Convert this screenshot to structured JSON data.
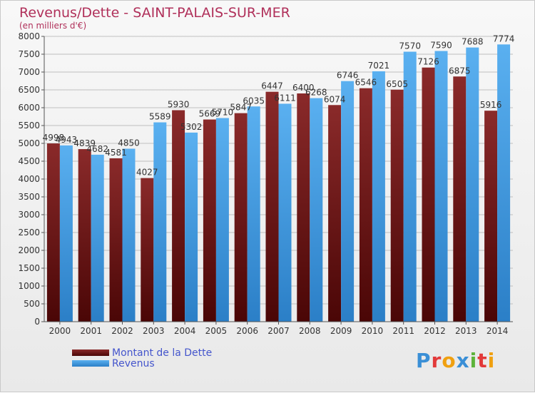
{
  "title": "Revenus/Dette - SAINT-PALAIS-SUR-MER",
  "subtitle": "(en milliers d'€)",
  "logo_text": "Proxiti",
  "colors": {
    "debt": "#7a1f1f",
    "revenue": "#4aa3e8",
    "title": "#b0305a",
    "legend_text": "#4455cc",
    "grid": "#bfbfbf"
  },
  "legend": {
    "debt_label": "Montant de la Dette",
    "revenue_label": "Revenus",
    "placement": "bottom-left"
  },
  "chart_data": {
    "type": "bar",
    "title": "Revenus/Dette - SAINT-PALAIS-SUR-MER",
    "subtitle": "(en milliers d'€)",
    "categories": [
      "2000",
      "2001",
      "2002",
      "2003",
      "2004",
      "2005",
      "2006",
      "2007",
      "2008",
      "2009",
      "2010",
      "2011",
      "2012",
      "2013",
      "2014"
    ],
    "series": [
      {
        "name": "Montant de la Dette",
        "values": [
          4998,
          4839,
          4581,
          4027,
          5930,
          5669,
          5847,
          6447,
          6400,
          6074,
          6546,
          6505,
          7126,
          6875,
          5916
        ],
        "labels": [
          "4998",
          "4839",
          "4581",
          "4027",
          "5930",
          "5669",
          "5847",
          "6447",
          "6400",
          "6074",
          "6546",
          "6505",
          "7126",
          "6875",
          "5916"
        ]
      },
      {
        "name": "Revenus",
        "values": [
          4943,
          4682,
          4850,
          5589,
          5302,
          5710,
          6035,
          6111,
          6268,
          6746,
          7021,
          7570,
          7590,
          7688,
          7774
        ],
        "labels": [
          "4943",
          "4682",
          "4850",
          "5589",
          "5302",
          "5710",
          "6035",
          "6111",
          "6268",
          "6746",
          "7021",
          "7570",
          "7590",
          "7688",
          "7774"
        ]
      }
    ],
    "ylim": [
      0,
      8000
    ],
    "yticks": [
      0,
      500,
      1000,
      1500,
      2000,
      2500,
      3000,
      3500,
      4000,
      4500,
      5000,
      5500,
      6000,
      6500,
      7000,
      7500,
      8000
    ],
    "xlabel": "",
    "ylabel": "",
    "grid": true
  }
}
